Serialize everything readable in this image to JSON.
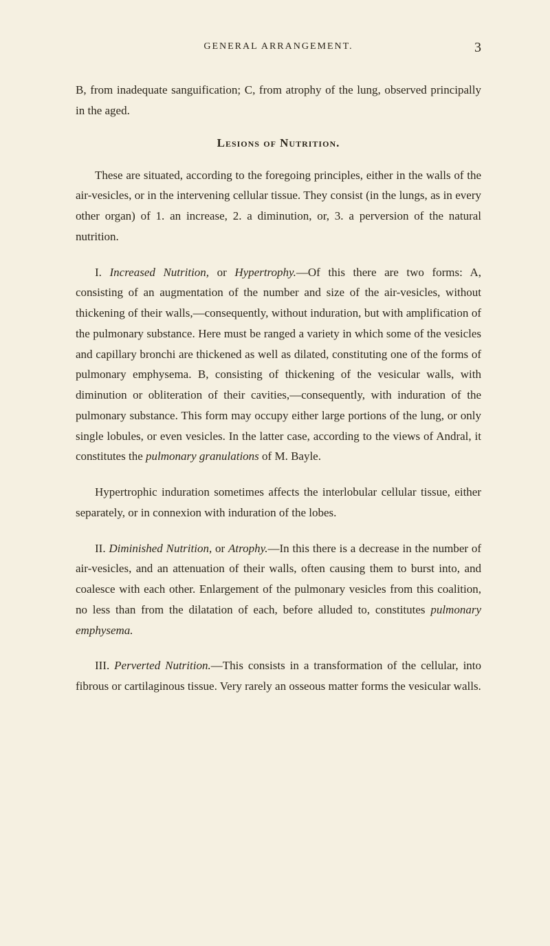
{
  "page": {
    "running_title": "GENERAL ARRANGEMENT.",
    "page_number": "3",
    "background_color": "#f5f0e1",
    "text_color": "#2a2419",
    "font_family": "Georgia, Times New Roman, serif",
    "body_fontsize": 17,
    "line_height": 1.75
  },
  "content": {
    "para1_pre": "B, from inadequate sanguification; C, from atrophy of the lung, observed principally in the aged.",
    "heading1": "Lesions of Nutrition.",
    "para2": "These are situated, according to the foregoing principles, either in the walls of the air-vesicles, or in the intervening cellular tissue. They consist (in the lungs, as in every other organ) of 1. an increase, 2. a diminution, or, 3. a perversion of the natural nutrition.",
    "para3_label": "I. ",
    "para3_italic1": "Increased Nutrition,",
    "para3_mid1": " or ",
    "para3_italic2": "Hypertrophy.",
    "para3_rest": "—Of this there are two forms: A, consisting of an augmentation of the number and size of the air-vesicles, without thickening of their walls,—consequently, without induration, but with amplification of the pulmonary substance. Here must be ranged a variety in which some of the vesicles and capillary bronchi are thickened as well as dilated, constituting one of the forms of pulmonary emphysema. B, consisting of thickening of the vesicular walls, with diminution or obliteration of their cavities,—consequently, with induration of the pulmonary substance. This form may occupy either large portions of the lung, or only single lobules, or even vesicles. In the latter case, according to the views of Andral, it constitutes the ",
    "para3_italic3": "pulmonary granulations",
    "para3_end": " of M. Bayle.",
    "para4": "Hypertrophic induration sometimes affects the interlobular cellular tissue, either separately, or in connexion with induration of the lobes.",
    "para5_label": "II. ",
    "para5_italic1": "Diminished Nutrition,",
    "para5_mid1": " or ",
    "para5_italic2": "Atrophy.",
    "para5_rest": "—In this there is a decrease in the number of air-vesicles, and an attenuation of their walls, often causing them to burst into, and coalesce with each other. Enlargement of the pulmonary vesicles from this coalition, no less than from the dilatation of each, before alluded to, constitutes ",
    "para5_italic3": "pulmonary emphysema.",
    "para6_label": "III. ",
    "para6_italic1": "Perverted Nutrition.",
    "para6_rest": "—This consists in a transformation of the cellular, into fibrous or cartilaginous tissue. Very rarely an osseous matter forms the vesicular walls."
  }
}
